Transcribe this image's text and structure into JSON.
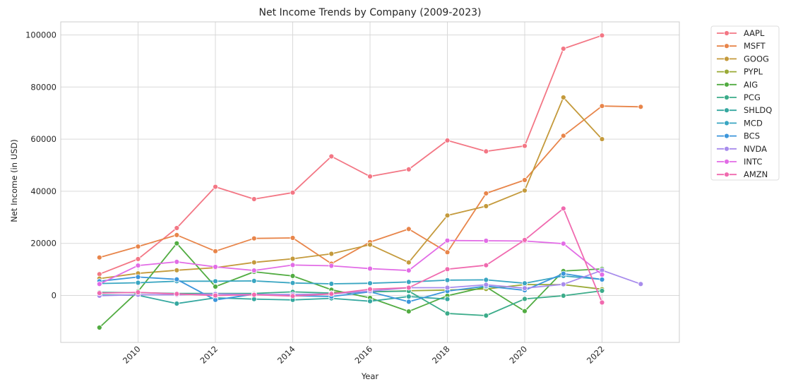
{
  "chart_data": {
    "type": "line",
    "title": "Net Income Trends by Company (2009-2023)",
    "xlabel": "Year",
    "ylabel": "Net Income (in USD)",
    "xlim": [
      2008,
      2024
    ],
    "ylim": [
      -18000,
      105000
    ],
    "x_ticks": [
      2010,
      2012,
      2014,
      2016,
      2018,
      2020,
      2022
    ],
    "y_ticks": [
      0,
      20000,
      40000,
      60000,
      80000,
      100000
    ],
    "grid": true,
    "legend_position": "outside-right",
    "series": [
      {
        "name": "AAPL",
        "color": "#f37785",
        "x": [
          2009,
          2010,
          2011,
          2012,
          2013,
          2014,
          2015,
          2016,
          2017,
          2018,
          2019,
          2020,
          2021,
          2022
        ],
        "y": [
          8200,
          14000,
          25900,
          41700,
          37000,
          39500,
          53400,
          45700,
          48400,
          59500,
          55300,
          57400,
          94700,
          99800
        ]
      },
      {
        "name": "MSFT",
        "color": "#e8854a",
        "x": [
          2009,
          2010,
          2011,
          2012,
          2013,
          2014,
          2015,
          2016,
          2017,
          2018,
          2019,
          2020,
          2021,
          2022,
          2023
        ],
        "y": [
          14600,
          18800,
          23200,
          17000,
          21900,
          22100,
          12200,
          20500,
          25500,
          16600,
          39200,
          44300,
          61300,
          72700,
          72400
        ]
      },
      {
        "name": "GOOG",
        "color": "#c49a3c",
        "x": [
          2009,
          2010,
          2011,
          2012,
          2013,
          2014,
          2015,
          2016,
          2017,
          2018,
          2019,
          2020,
          2021,
          2022
        ],
        "y": [
          6500,
          8500,
          9700,
          10700,
          12700,
          14100,
          16000,
          19500,
          12700,
          30700,
          34300,
          40300,
          76000,
          60000
        ]
      },
      {
        "name": "PYPL",
        "color": "#9aaa36",
        "x": [
          2015,
          2016,
          2017,
          2018,
          2019,
          2020,
          2021,
          2022
        ],
        "y": [
          1200,
          1400,
          1800,
          2100,
          2500,
          4200,
          4200,
          2400
        ]
      },
      {
        "name": "AIG",
        "color": "#52ac42",
        "x": [
          2009,
          2010,
          2011,
          2012,
          2013,
          2014,
          2015,
          2016,
          2017,
          2018,
          2019,
          2020,
          2021,
          2022
        ],
        "y": [
          -12300,
          1600,
          20000,
          3400,
          9100,
          7500,
          2200,
          -900,
          -6100,
          -100,
          3300,
          -6000,
          9400,
          10200
        ]
      },
      {
        "name": "PCG",
        "color": "#3cac8a",
        "x": [
          2009,
          2010,
          2011,
          2012,
          2013,
          2014,
          2015,
          2016,
          2017,
          2018,
          2019,
          2020,
          2021,
          2022
        ],
        "y": [
          1200,
          1100,
          800,
          800,
          800,
          1400,
          900,
          1400,
          1700,
          -6900,
          -7700,
          -1300,
          -100,
          1800
        ]
      },
      {
        "name": "SHLDQ",
        "color": "#36a8a0",
        "x": [
          2009,
          2010,
          2011,
          2012,
          2013,
          2014,
          2015,
          2016,
          2017,
          2018
        ],
        "y": [
          200,
          100,
          -3100,
          -900,
          -1400,
          -1700,
          -1100,
          -2200,
          -400,
          -1400
        ]
      },
      {
        "name": "MCD",
        "color": "#3aa6c2",
        "x": [
          2009,
          2010,
          2011,
          2012,
          2013,
          2014,
          2015,
          2016,
          2017,
          2018,
          2019,
          2020,
          2021,
          2022
        ],
        "y": [
          4600,
          4900,
          5500,
          5500,
          5600,
          4800,
          4500,
          4700,
          5200,
          5900,
          6000,
          4700,
          7500,
          6200
        ]
      },
      {
        "name": "BCS",
        "color": "#3c96db",
        "x": [
          2009,
          2010,
          2011,
          2012,
          2013,
          2014,
          2015,
          2016,
          2017,
          2018,
          2019,
          2020,
          2021,
          2022
        ],
        "y": [
          5500,
          7100,
          6200,
          -1700,
          500,
          -100,
          -400,
          1400,
          -2400,
          1700,
          3600,
          2000,
          8400,
          6100
        ]
      },
      {
        "name": "NVDA",
        "color": "#a88cec",
        "x": [
          2009,
          2010,
          2011,
          2012,
          2013,
          2014,
          2015,
          2016,
          2017,
          2018,
          2019,
          2020,
          2021,
          2022,
          2023
        ],
        "y": [
          -100,
          300,
          300,
          600,
          400,
          400,
          600,
          1700,
          3000,
          3000,
          4100,
          2800,
          4300,
          9700,
          4400
        ]
      },
      {
        "name": "INTC",
        "color": "#e26ce6",
        "x": [
          2009,
          2010,
          2011,
          2012,
          2013,
          2014,
          2015,
          2016,
          2017,
          2018,
          2019,
          2020,
          2021,
          2022
        ],
        "y": [
          4400,
          11500,
          12900,
          11000,
          9600,
          11700,
          11400,
          10300,
          9600,
          21100,
          21000,
          20900,
          19900,
          8000
        ]
      },
      {
        "name": "AMZN",
        "color": "#f06aaf",
        "x": [
          2009,
          2010,
          2011,
          2012,
          2013,
          2014,
          2015,
          2016,
          2017,
          2018,
          2019,
          2020,
          2021,
          2022
        ],
        "y": [
          900,
          1200,
          600,
          0,
          300,
          -200,
          600,
          2400,
          3000,
          10100,
          11600,
          21300,
          33400,
          -2700
        ]
      }
    ]
  }
}
